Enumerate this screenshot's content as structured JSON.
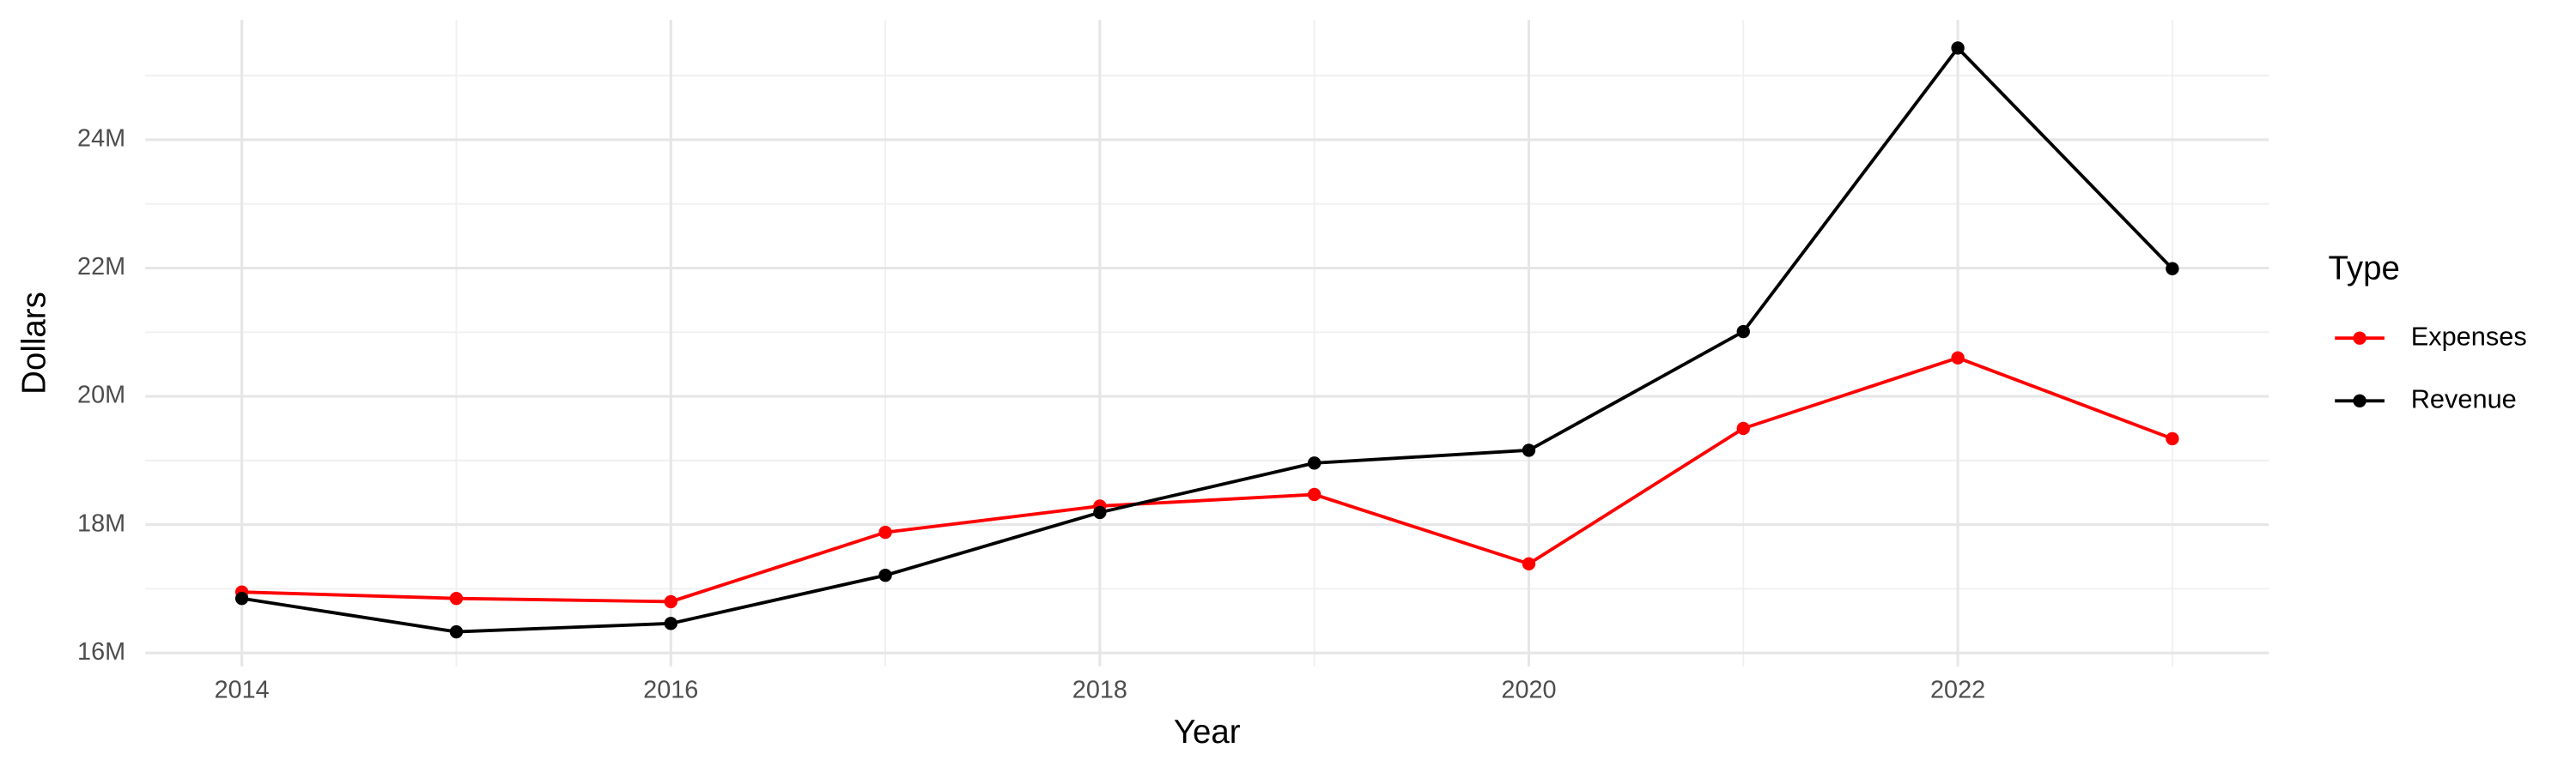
{
  "chart_data": {
    "type": "line",
    "x_label": "Year",
    "y_label": "Dollars",
    "legend_title": "Type",
    "legend": "right",
    "grid": true,
    "x": [
      2014,
      2015,
      2016,
      2017,
      2018,
      2019,
      2020,
      2021,
      2022,
      2023
    ],
    "series": [
      {
        "name": "Expenses",
        "color": "#ff0000",
        "values": [
          16950000,
          16850000,
          16800000,
          17880000,
          18290000,
          18470000,
          17390000,
          19500000,
          20600000,
          19340000
        ]
      },
      {
        "name": "Revenue",
        "color": "#000000",
        "values": [
          16850000,
          16330000,
          16460000,
          17210000,
          18190000,
          18960000,
          19160000,
          21010000,
          25430000,
          21990000
        ]
      }
    ],
    "xlim": [
      2013.55,
      2023.45
    ],
    "xticks": [
      2014,
      2016,
      2018,
      2020,
      2022
    ],
    "ylim": [
      15790000,
      25870000
    ],
    "yticks": [
      {
        "value": 16000000,
        "label": "16M"
      },
      {
        "value": 18000000,
        "label": "18M"
      },
      {
        "value": 20000000,
        "label": "20M"
      },
      {
        "value": 22000000,
        "label": "22M"
      },
      {
        "value": 24000000,
        "label": "24M"
      }
    ]
  }
}
